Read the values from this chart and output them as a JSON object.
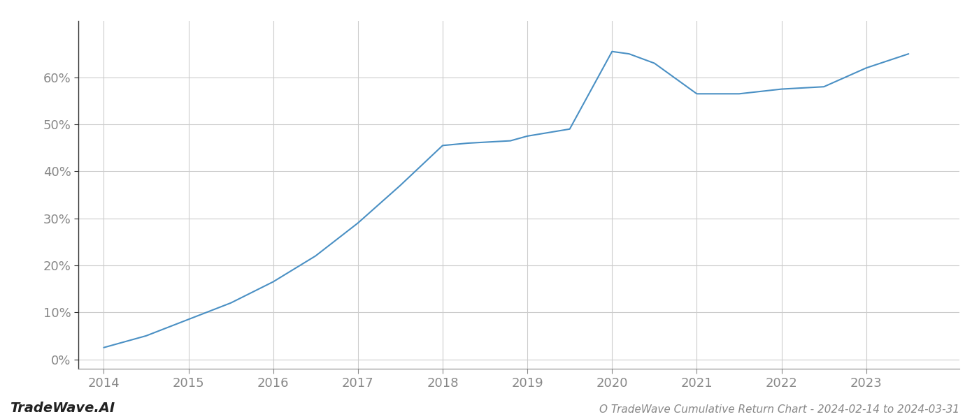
{
  "x": [
    2014,
    2014.5,
    2015,
    2015.5,
    2016,
    2016.5,
    2017,
    2017.5,
    2018,
    2018.3,
    2018.8,
    2019,
    2019.5,
    2020,
    2020.2,
    2020.5,
    2021,
    2021.5,
    2022,
    2022.5,
    2023,
    2023.5
  ],
  "y": [
    2.5,
    5.0,
    8.5,
    12.0,
    16.5,
    22.0,
    29.0,
    37.0,
    45.5,
    46.0,
    46.5,
    47.5,
    49.0,
    65.5,
    65.0,
    63.0,
    56.5,
    56.5,
    57.5,
    58.0,
    62.0,
    65.0
  ],
  "line_color": "#4a90c4",
  "line_width": 1.5,
  "background_color": "#ffffff",
  "grid_color": "#cccccc",
  "title": "O TradeWave Cumulative Return Chart - 2024-02-14 to 2024-03-31",
  "watermark": "TradeWave.AI",
  "xlim": [
    2013.7,
    2024.1
  ],
  "ylim": [
    -2,
    72
  ],
  "yticks": [
    0,
    10,
    20,
    30,
    40,
    50,
    60
  ],
  "xticks": [
    2014,
    2015,
    2016,
    2017,
    2018,
    2019,
    2020,
    2021,
    2022,
    2023
  ],
  "tick_label_color": "#888888",
  "left_spine_color": "#333333",
  "bottom_spine_color": "#888888",
  "title_fontsize": 11,
  "watermark_fontsize": 14,
  "axis_label_fontsize": 13
}
